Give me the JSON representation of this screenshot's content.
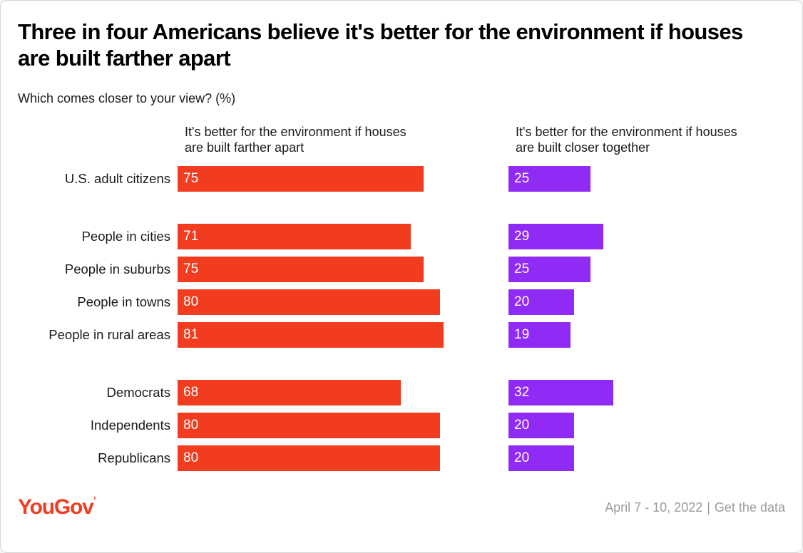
{
  "title": "Three in four Americans believe it's better for the environment if houses are built farther apart",
  "subtitle": "Which comes closer to your view? (%)",
  "chart_data": {
    "type": "bar",
    "orientation": "horizontal",
    "unit": "%",
    "xlim": [
      0,
      100
    ],
    "categories": [
      "U.S. adult citizens",
      "People in cities",
      "People in suburbs",
      "People in towns",
      "People in rural areas",
      "Democrats",
      "Independents",
      "Republicans"
    ],
    "series": [
      {
        "name": "It's better for the environment if houses are built farther apart",
        "color": "#f23c1f",
        "values": [
          75,
          71,
          75,
          80,
          81,
          68,
          80,
          80
        ]
      },
      {
        "name": "It's better for the environment if houses are built closer together",
        "color": "#8f2bf4",
        "values": [
          25,
          29,
          25,
          20,
          19,
          32,
          20,
          20
        ]
      }
    ],
    "group_starts": [
      1,
      5
    ],
    "value_labels": "inside-start",
    "grid": false,
    "legend_position": "column-headers"
  },
  "footer": {
    "logo_text": "YouGov",
    "logo_mark": "’",
    "date_range": "April 7 - 10, 2022",
    "separator": "|",
    "link_label": "Get the data"
  },
  "colors": {
    "farther_apart": "#f23c1f",
    "closer_together": "#8f2bf4",
    "text": "#1a1a1a",
    "muted": "#9b9b9b",
    "logo": "#f23c1f"
  }
}
